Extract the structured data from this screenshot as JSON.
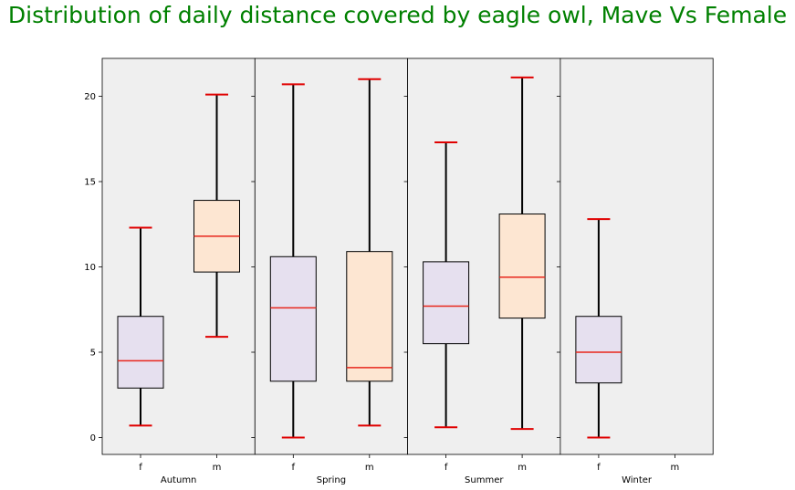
{
  "chart_data": {
    "type": "box",
    "title": "Distribution of daily distance covered by eagle owl, Mave Vs Female",
    "ylim": [
      -1,
      22.2
    ],
    "yticks": [
      0,
      5,
      10,
      15,
      20
    ],
    "grid": false,
    "colors": {
      "panel_background": "#efefef",
      "f_box_fill": "#e6e0ef",
      "m_box_fill": "#fde6d2",
      "median": "#e8261c",
      "cap": "#e00000",
      "whisker": "#000000",
      "title": "#008000"
    },
    "panels": [
      {
        "label": "Autumn",
        "categories": [
          "f",
          "m"
        ],
        "boxes": [
          {
            "category": "f",
            "min": 0.7,
            "q1": 2.9,
            "median": 4.5,
            "q3": 7.1,
            "max": 12.3
          },
          {
            "category": "m",
            "min": 5.9,
            "q1": 9.7,
            "median": 11.8,
            "q3": 13.9,
            "max": 20.1
          }
        ]
      },
      {
        "label": "Spring",
        "categories": [
          "f",
          "m"
        ],
        "boxes": [
          {
            "category": "f",
            "min": 0.0,
            "q1": 3.3,
            "median": 7.6,
            "q3": 10.6,
            "max": 20.7
          },
          {
            "category": "m",
            "min": 0.7,
            "q1": 3.3,
            "median": 4.1,
            "q3": 10.9,
            "max": 21.0
          }
        ]
      },
      {
        "label": "Summer",
        "categories": [
          "f",
          "m"
        ],
        "boxes": [
          {
            "category": "f",
            "min": 0.6,
            "q1": 5.5,
            "median": 7.7,
            "q3": 10.3,
            "max": 17.3
          },
          {
            "category": "m",
            "min": 0.5,
            "q1": 7.0,
            "median": 9.4,
            "q3": 13.1,
            "max": 21.1
          }
        ]
      },
      {
        "label": "Winter",
        "categories": [
          "f",
          "m"
        ],
        "boxes": [
          {
            "category": "f",
            "min": 0.0,
            "q1": 3.2,
            "median": 5.0,
            "q3": 7.1,
            "max": 12.8
          }
        ]
      }
    ]
  }
}
